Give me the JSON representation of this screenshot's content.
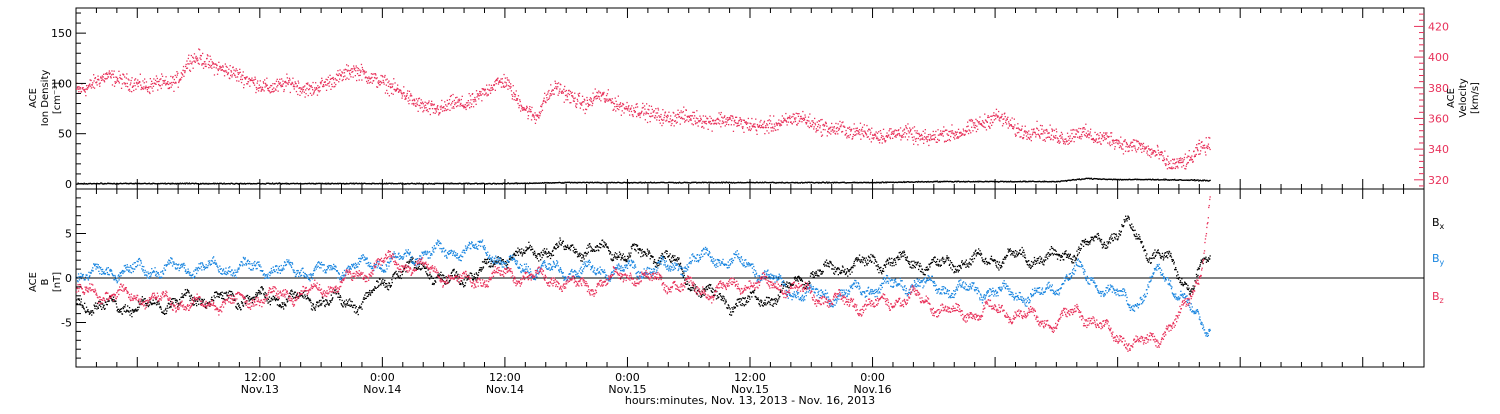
{
  "chart_data": [
    {
      "type": "scatter",
      "panel": "top",
      "left_axis": {
        "label_lines": [
          "ACE",
          "Ion Density",
          "[cm⁻³]"
        ],
        "ylim": [
          -5,
          175
        ],
        "ticks": [
          0,
          50,
          100,
          150
        ],
        "tick_labels": [
          "0",
          "50",
          "100",
          "150"
        ]
      },
      "right_axis": {
        "label_lines": [
          "ACE",
          "Velocity",
          "[km/s]"
        ],
        "ylim": [
          314,
          432
        ],
        "ticks": [
          320,
          340,
          360,
          380,
          400,
          420
        ],
        "tick_labels": [
          "320",
          "340",
          "360",
          "380",
          "400",
          "420"
        ],
        "color": "#e8315a"
      },
      "series": [
        {
          "color": "#e8315a",
          "axis": "right",
          "points": [
            [
              -6,
              379
            ],
            [
              -5,
              380
            ],
            [
              -4,
              385
            ],
            [
              -3,
              388
            ],
            [
              -2,
              386
            ],
            [
              -1,
              384
            ],
            [
              0,
              383
            ],
            [
              1,
              381
            ],
            [
              2,
              384
            ],
            [
              3,
              382
            ],
            [
              4,
              386
            ],
            [
              5,
              398
            ],
            [
              6,
              400
            ],
            [
              7,
              396
            ],
            [
              8,
              393
            ],
            [
              9,
              391
            ],
            [
              10,
              388
            ],
            [
              11,
              385
            ],
            [
              12,
              382
            ],
            [
              13,
              380
            ],
            [
              14,
              382
            ],
            [
              15,
              384
            ],
            [
              16,
              380
            ],
            [
              17,
              379
            ],
            [
              18,
              382
            ],
            [
              19,
              385
            ],
            [
              20,
              388
            ],
            [
              21,
              392
            ],
            [
              22,
              390
            ],
            [
              23,
              386
            ],
            [
              24,
              384
            ],
            [
              25,
              380
            ],
            [
              26,
              377
            ],
            [
              27,
              371
            ],
            [
              28,
              368
            ],
            [
              29,
              366
            ],
            [
              30,
              367
            ],
            [
              31,
              371
            ],
            [
              32,
              369
            ],
            [
              33,
              372
            ],
            [
              34,
              378
            ],
            [
              35,
              383
            ],
            [
              36,
              385
            ],
            [
              37,
              374
            ],
            [
              38,
              366
            ],
            [
              39,
              361
            ],
            [
              40,
              374
            ],
            [
              41,
              381
            ],
            [
              42,
              376
            ],
            [
              43,
              372
            ],
            [
              44,
              369
            ],
            [
              45,
              376
            ],
            [
              46,
              373
            ],
            [
              47,
              369
            ],
            [
              48,
              367
            ],
            [
              49,
              366
            ],
            [
              50,
              364
            ],
            [
              51,
              362
            ],
            [
              52,
              360
            ],
            [
              53,
              362
            ],
            [
              54,
              361
            ],
            [
              55,
              360
            ],
            [
              56,
              358
            ],
            [
              57,
              360
            ],
            [
              58,
              359
            ],
            [
              59,
              357
            ],
            [
              60,
              356
            ],
            [
              61,
              355
            ],
            [
              62,
              356
            ],
            [
              63,
              357
            ],
            [
              64,
              360
            ],
            [
              65,
              361
            ],
            [
              66,
              357
            ],
            [
              67,
              355
            ],
            [
              68,
              353
            ],
            [
              69,
              354
            ],
            [
              70,
              351
            ],
            [
              71,
              352
            ],
            [
              72,
              350
            ],
            [
              73,
              349
            ],
            [
              74,
              350
            ],
            [
              75,
              352
            ],
            [
              76,
              349
            ],
            [
              77,
              347
            ],
            [
              78,
              348
            ],
            [
              79,
              351
            ],
            [
              80,
              350
            ],
            [
              81,
              352
            ],
            [
              82,
              356
            ],
            [
              83,
              358
            ],
            [
              84,
              362
            ],
            [
              85,
              359
            ],
            [
              86,
              353
            ],
            [
              87,
              351
            ],
            [
              88,
              353
            ],
            [
              89,
              350
            ],
            [
              90,
              349
            ],
            [
              91,
              347
            ],
            [
              92,
              352
            ],
            [
              93,
              350
            ],
            [
              94,
              347
            ],
            [
              95,
              348
            ],
            [
              96,
              345
            ],
            [
              97,
              342
            ],
            [
              98,
              343
            ],
            [
              99,
              339
            ],
            [
              100,
              337
            ],
            [
              101,
              330
            ],
            [
              102,
              331
            ],
            [
              103,
              333
            ],
            [
              104,
              341
            ],
            [
              105,
              343
            ]
          ]
        },
        {
          "color": "#000000",
          "axis": "left",
          "points": [
            [
              -6,
              1
            ],
            [
              0,
              1
            ],
            [
              6,
              1
            ],
            [
              12,
              1
            ],
            [
              18,
              1
            ],
            [
              24,
              1
            ],
            [
              30,
              1
            ],
            [
              36,
              1
            ],
            [
              42,
              2
            ],
            [
              48,
              2
            ],
            [
              54,
              2
            ],
            [
              60,
              2
            ],
            [
              66,
              2
            ],
            [
              72,
              2
            ],
            [
              78,
              3
            ],
            [
              84,
              3
            ],
            [
              90,
              3
            ],
            [
              93,
              6
            ],
            [
              96,
              5
            ],
            [
              100,
              5
            ],
            [
              105,
              4
            ]
          ]
        }
      ]
    },
    {
      "type": "scatter",
      "panel": "bottom",
      "left_axis": {
        "label_lines": [
          "ACE",
          "B",
          "[nT]"
        ],
        "ylim": [
          -10,
          10
        ],
        "ticks": [
          -5,
          0,
          5
        ],
        "tick_labels": [
          "-5",
          "0",
          "5"
        ]
      },
      "series": [
        {
          "name": "Bx",
          "label_main": "B",
          "label_sub": "x",
          "color": "#000000",
          "points": [
            [
              -6,
              -3
            ],
            [
              0,
              -3.2
            ],
            [
              6,
              -2.3
            ],
            [
              12,
              -2.2
            ],
            [
              18,
              -2.4
            ],
            [
              22,
              -2.8
            ],
            [
              25,
              0.5
            ],
            [
              28,
              1.5
            ],
            [
              30,
              -0.5
            ],
            [
              34,
              1.0
            ],
            [
              36,
              2.5
            ],
            [
              40,
              3.2
            ],
            [
              44,
              3.3
            ],
            [
              48,
              2.8
            ],
            [
              52,
              2.5
            ],
            [
              54,
              -0.5
            ],
            [
              58,
              -2.8
            ],
            [
              62,
              -2.2
            ],
            [
              66,
              0.5
            ],
            [
              70,
              1.5
            ],
            [
              74,
              2.0
            ],
            [
              78,
              1.5
            ],
            [
              82,
              2.0
            ],
            [
              86,
              2.5
            ],
            [
              90,
              2.2
            ],
            [
              93,
              3.8
            ],
            [
              95,
              4.5
            ],
            [
              97,
              6.0
            ],
            [
              99,
              3.0
            ],
            [
              101,
              2.0
            ],
            [
              103,
              -1.0
            ],
            [
              105,
              2.5
            ]
          ]
        },
        {
          "name": "By",
          "label_main": "B",
          "label_sub": "y",
          "color": "#1a86e0",
          "points": [
            [
              -6,
              0.4
            ],
            [
              0,
              1.0
            ],
            [
              6,
              1.2
            ],
            [
              12,
              1.2
            ],
            [
              18,
              0.8
            ],
            [
              24,
              1.8
            ],
            [
              28,
              2.8
            ],
            [
              32,
              3.2
            ],
            [
              34,
              3.4
            ],
            [
              36,
              1.5
            ],
            [
              42,
              0.8
            ],
            [
              48,
              1.0
            ],
            [
              52,
              1.2
            ],
            [
              56,
              2.5
            ],
            [
              60,
              1.5
            ],
            [
              64,
              -1.5
            ],
            [
              68,
              -2.0
            ],
            [
              72,
              -1.0
            ],
            [
              76,
              -0.5
            ],
            [
              80,
              -1.2
            ],
            [
              84,
              -1.5
            ],
            [
              88,
              -2.0
            ],
            [
              90,
              -0.8
            ],
            [
              92,
              1.0
            ],
            [
              95,
              -1.5
            ],
            [
              98,
              -2.8
            ],
            [
              100,
              1.0
            ],
            [
              102,
              -1.5
            ],
            [
              104,
              -5.0
            ],
            [
              105,
              -5.4
            ]
          ]
        },
        {
          "name": "Bz",
          "label_main": "B",
          "label_sub": "z",
          "color": "#e8315a",
          "points": [
            [
              -6,
              -1.5
            ],
            [
              0,
              -2.0
            ],
            [
              6,
              -3.0
            ],
            [
              12,
              -2.2
            ],
            [
              18,
              -1.3
            ],
            [
              22,
              0.5
            ],
            [
              24,
              2.0
            ],
            [
              28,
              1.2
            ],
            [
              32,
              -0.5
            ],
            [
              36,
              0.5
            ],
            [
              40,
              0.0
            ],
            [
              44,
              -1.0
            ],
            [
              48,
              0.5
            ],
            [
              52,
              -0.5
            ],
            [
              56,
              -1.5
            ],
            [
              60,
              -0.5
            ],
            [
              64,
              -1.0
            ],
            [
              68,
              -2.5
            ],
            [
              72,
              -3.0
            ],
            [
              76,
              -2.0
            ],
            [
              80,
              -4.0
            ],
            [
              84,
              -3.5
            ],
            [
              88,
              -4.5
            ],
            [
              90,
              -5.0
            ],
            [
              92,
              -3.5
            ],
            [
              95,
              -6.0
            ],
            [
              98,
              -7.5
            ],
            [
              100,
              -6.5
            ],
            [
              102,
              -4.5
            ],
            [
              104,
              0.5
            ],
            [
              105,
              8.5
            ]
          ]
        }
      ]
    }
  ],
  "x_axis": {
    "xlim": [
      -6,
      126
    ],
    "major_ticks": [
      {
        "hours": 12,
        "time": "12:00",
        "day": "Nov.13"
      },
      {
        "hours": 24,
        "time": "0:00",
        "day": "Nov.14"
      },
      {
        "hours": 36,
        "time": "12:00",
        "day": "Nov.14"
      },
      {
        "hours": 48,
        "time": "0:00",
        "day": "Nov.15"
      },
      {
        "hours": 60,
        "time": "12:00",
        "day": "Nov.15"
      },
      {
        "hours": 72,
        "time": "0:00",
        "day": "Nov.16"
      }
    ],
    "title": "hours:minutes, Nov. 13, 2013 - Nov. 16, 2013"
  }
}
